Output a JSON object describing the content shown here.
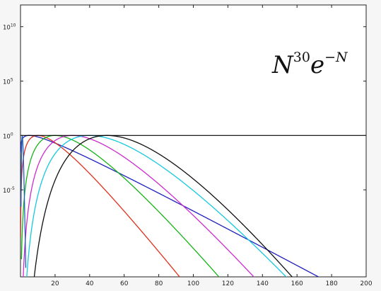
{
  "chart_data": {
    "type": "line",
    "title": "",
    "xlabel": "",
    "ylabel": "",
    "annotation": {
      "base": "N",
      "power": "30",
      "mid": "e",
      "tail": "−N"
    },
    "xlim": [
      0,
      200
    ],
    "ylim_log10": [
      -13,
      12
    ],
    "log_y": true,
    "grid": false,
    "x_ticks": [
      20,
      40,
      60,
      80,
      100,
      120,
      140,
      160,
      180,
      200
    ],
    "y_ticks": [
      {
        "base": "10",
        "exp": "10",
        "log10": 10
      },
      {
        "base": "10",
        "exp": "5",
        "log10": 5
      },
      {
        "base": "10",
        "exp": "0",
        "log10": 0
      },
      {
        "base": "10",
        "exp": "-5",
        "log10": -5
      }
    ],
    "reference_line_log10": 0,
    "series": [
      {
        "p": 1,
        "c": 5,
        "color": "#1f1fbf"
      },
      {
        "p": 5,
        "c": 10,
        "color": "#e0301e"
      },
      {
        "p": 10,
        "c": 20,
        "color": "#16b416"
      },
      {
        "p": 15,
        "c": 30,
        "color": "#cc2ccc"
      },
      {
        "p": 20,
        "c": 40,
        "color": "#16c8e0"
      },
      {
        "p": 30,
        "c": 50,
        "color": "#101010"
      },
      {
        "p": 30,
        "c": 1,
        "color": "#1f5fbf"
      }
    ],
    "colors": {
      "axis": "#222222",
      "background": "#ffffff"
    }
  }
}
